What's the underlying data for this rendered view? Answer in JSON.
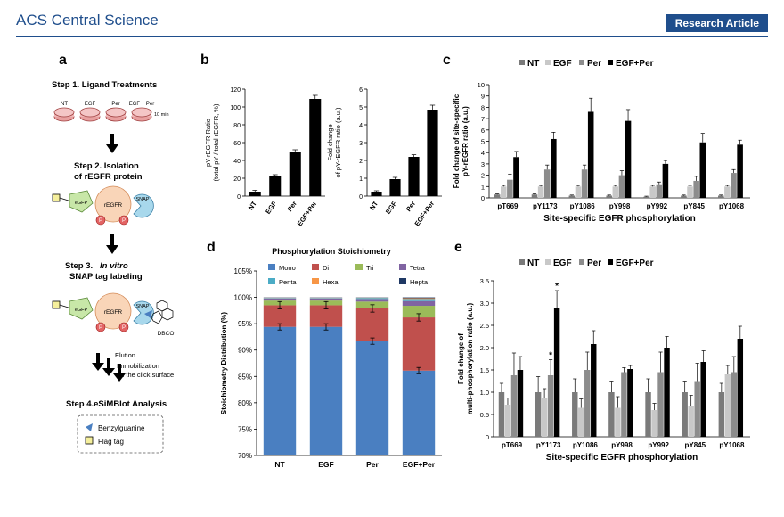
{
  "header": {
    "journal": "ACS Central Science",
    "article_type": "Research Article"
  },
  "panel_letters": {
    "a": "a",
    "b": "b",
    "c": "c",
    "d": "d",
    "e": "e"
  },
  "schematic": {
    "step1": "Step 1. Ligand Treatments",
    "dish_labels": [
      "NT",
      "EGF",
      "Per",
      "EGF + Per"
    ],
    "time": "10 min",
    "step2_l1": "Step 2. Isolation",
    "step2_l2": "of rEGFR protein",
    "step3_l1a": "Step 3.",
    "step3_l1b": "In vitro",
    "step3_l2": "SNAP tag labeling",
    "egfp": "eGFP",
    "regfr": "rEGFR",
    "snap": "SNAP",
    "p": "P",
    "dbco": "DBCO",
    "elution": "Elution",
    "immob_l1": "Immobilization",
    "immob_l2": "on the click surface",
    "step4": "Step 4.eSiMBlot Analysis",
    "legend_benzyl": "Benzylguanine",
    "legend_flag": "Flag tag"
  },
  "chart_data": [
    {
      "id": "b1",
      "type": "bar",
      "categories": [
        "NT",
        "EGF",
        "Per",
        "EGF+Per"
      ],
      "values": [
        5,
        22,
        49,
        109
      ],
      "errors": [
        1.5,
        2,
        3,
        4
      ],
      "ylabel_l1": "pY-rEGFR Ratio",
      "ylabel_l2": "(total pY / total rEGFR, %)",
      "ylim": [
        0,
        120
      ],
      "yticks": [
        "0",
        "20",
        "40",
        "60",
        "80",
        "100",
        "120"
      ]
    },
    {
      "id": "b2",
      "type": "bar",
      "categories": [
        "NT",
        "EGF",
        "Per",
        "EGF+Per"
      ],
      "values": [
        0.25,
        0.95,
        2.2,
        4.85
      ],
      "errors": [
        0.05,
        0.1,
        0.12,
        0.25
      ],
      "ylabel_l1": "Fold change",
      "ylabel_l2": "of pY-rEGFR ratio (a.u.)",
      "ylim": [
        0,
        6
      ],
      "yticks": [
        "0",
        "1",
        "2",
        "3",
        "4",
        "5",
        "6"
      ]
    },
    {
      "id": "c",
      "type": "bar",
      "categories": [
        "pT669",
        "pY1173",
        "pY1086",
        "pY998",
        "pY992",
        "pY845",
        "pY1068"
      ],
      "series": [
        {
          "name": "NT",
          "values": [
            0.3,
            0.3,
            0.2,
            0.2,
            0.1,
            0.2,
            0.2
          ],
          "errors": [
            0.05,
            0.05,
            0.05,
            0.05,
            0.05,
            0.05,
            0.05
          ]
        },
        {
          "name": "EGF",
          "values": [
            1.0,
            1.0,
            1.0,
            1.0,
            1.0,
            1.0,
            1.0
          ],
          "errors": [
            0.1,
            0.1,
            0.1,
            0.1,
            0.1,
            0.1,
            0.1
          ]
        },
        {
          "name": "Per",
          "values": [
            1.6,
            2.5,
            2.5,
            2.0,
            1.2,
            1.5,
            2.2
          ],
          "errors": [
            0.5,
            0.4,
            0.4,
            0.4,
            0.2,
            0.4,
            0.3
          ]
        },
        {
          "name": "EGF+Per",
          "values": [
            3.6,
            5.2,
            7.6,
            6.8,
            3.0,
            4.9,
            4.7
          ],
          "errors": [
            0.5,
            0.6,
            1.2,
            1.0,
            0.3,
            0.8,
            0.4
          ]
        }
      ],
      "ylabel_l1": "Fold change of site-specific",
      "ylabel_l2": "pY-rEGFR ratio (a.u.)",
      "xlabel": "Site-specific EGFR phosphorylation",
      "ylim": [
        0,
        10
      ],
      "yticks": [
        "0",
        "1",
        "2",
        "3",
        "4",
        "5",
        "6",
        "7",
        "8",
        "9",
        "10"
      ],
      "colors": [
        "#7a7a7a",
        "#c8c8c8",
        "#8c8c8c",
        "#000000"
      ]
    },
    {
      "id": "d",
      "type": "bar",
      "title": "Phosphorylation Stoichiometry",
      "categories": [
        "NT",
        "EGF",
        "Per",
        "EGF+Per"
      ],
      "series": [
        {
          "name": "Mono",
          "values": [
            94.4,
            94.4,
            91.7,
            86.1
          ]
        },
        {
          "name": "Di",
          "values": [
            4.1,
            4.1,
            6.2,
            10.1
          ]
        },
        {
          "name": "Tri",
          "values": [
            0.9,
            0.9,
            1.3,
            2.2
          ]
        },
        {
          "name": "Tetra",
          "values": [
            0.4,
            0.4,
            0.5,
            0.9
          ]
        },
        {
          "name": "Penta",
          "values": [
            0.1,
            0.1,
            0.2,
            0.4
          ]
        },
        {
          "name": "Hexa",
          "values": [
            0.05,
            0.05,
            0.05,
            0.15
          ]
        },
        {
          "name": "Hepta",
          "values": [
            0.05,
            0.05,
            0.05,
            0.15
          ]
        }
      ],
      "errors": [
        {
          "at": 94.4,
          "err": 0.6
        },
        {
          "at": 94.4,
          "err": 0.6
        },
        {
          "at": 91.7,
          "err": 0.6
        },
        {
          "at": 86.1,
          "err": 0.6
        }
      ],
      "errors_top": [
        {
          "at": 98.5,
          "err": 0.7
        },
        {
          "at": 98.5,
          "err": 0.7
        },
        {
          "at": 97.9,
          "err": 0.7
        },
        {
          "at": 96.2,
          "err": 0.7
        }
      ],
      "ylabel": "Stoichiometry Distribution (%)",
      "ylim": [
        70,
        105
      ],
      "yticks": [
        "70%",
        "75%",
        "80%",
        "85%",
        "90%",
        "95%",
        "100%",
        "105%"
      ],
      "colors": [
        "#4a7fc1",
        "#c0504d",
        "#9bbb59",
        "#8064a2",
        "#4bacc6",
        "#f79646",
        "#1f3864"
      ]
    },
    {
      "id": "e",
      "type": "bar",
      "categories": [
        "pT669",
        "pY1173",
        "pY1086",
        "pY998",
        "pY992",
        "pY845",
        "pY1068"
      ],
      "series": [
        {
          "name": "NT",
          "values": [
            1.0,
            1.0,
            1.0,
            1.0,
            1.0,
            1.0,
            1.0
          ],
          "errors": [
            0.2,
            0.35,
            0.3,
            0.25,
            0.3,
            0.25,
            0.2
          ]
        },
        {
          "name": "EGF",
          "values": [
            0.72,
            0.88,
            0.65,
            0.65,
            0.6,
            0.68,
            1.4
          ],
          "errors": [
            0.15,
            0.2,
            0.2,
            0.25,
            0.15,
            0.25,
            0.2
          ]
        },
        {
          "name": "Per",
          "values": [
            1.38,
            1.38,
            1.5,
            1.45,
            1.45,
            1.25,
            1.45
          ],
          "errors": [
            0.5,
            0.35,
            0.4,
            0.1,
            0.45,
            0.4,
            0.35
          ]
        },
        {
          "name": "EGF+Per",
          "values": [
            1.5,
            2.9,
            2.08,
            1.52,
            2.0,
            1.68,
            2.2
          ],
          "errors": [
            0.3,
            0.38,
            0.3,
            0.08,
            0.25,
            0.25,
            0.28
          ]
        }
      ],
      "stars": [
        "",
        "*",
        "",
        "",
        "",
        "",
        ""
      ],
      "stars_per": [
        "",
        "*",
        "",
        "",
        "",
        "",
        ""
      ],
      "ylabel_l1": "Fold change of",
      "ylabel_l2": "multi-phosphorylation ratio (a.u.)",
      "xlabel": "Site-specific EGFR phosphorylation",
      "ylim": [
        0,
        3.5
      ],
      "yticks": [
        "0",
        "0.5",
        "1.0",
        "1.5",
        "2.0",
        "2.5",
        "3.0",
        "3.5"
      ],
      "colors": [
        "#7a7a7a",
        "#c8c8c8",
        "#8c8c8c",
        "#000000"
      ]
    }
  ]
}
